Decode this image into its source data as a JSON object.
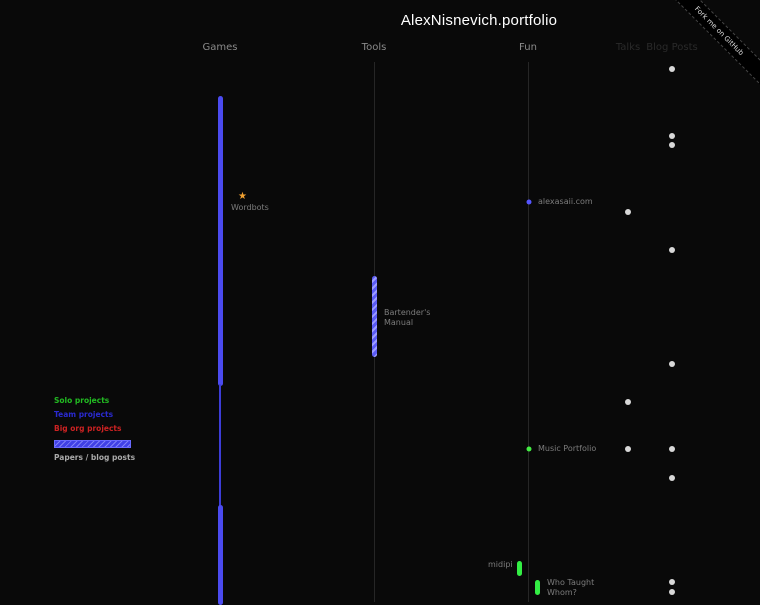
{
  "header": {
    "title": "AlexNisnevich.portfolio"
  },
  "ribbon": {
    "label": "Fork me on GitHub"
  },
  "columns": {
    "games": "Games",
    "tools": "Tools",
    "fun": "Fun",
    "talks": "Talks",
    "blog_posts": "Blog Posts"
  },
  "projects": {
    "wordbots": "Wordbots",
    "alexasaii": "alexasaii.com",
    "bartenders_manual": "Bartender's Manual",
    "music_portfolio": "Music Portfolio",
    "midipi": "midipi",
    "who_taught_whom": "Who Taught Whom?"
  },
  "legend": {
    "solo": "Solo projects",
    "team": "Team projects",
    "big_org": "Big org projects",
    "papers": "Papers / blog posts"
  },
  "colors": {
    "background": "#090909",
    "team": "#4b4bf0",
    "solo": "#33ee44",
    "big_org": "#cc2222",
    "star": "#f0a030"
  }
}
